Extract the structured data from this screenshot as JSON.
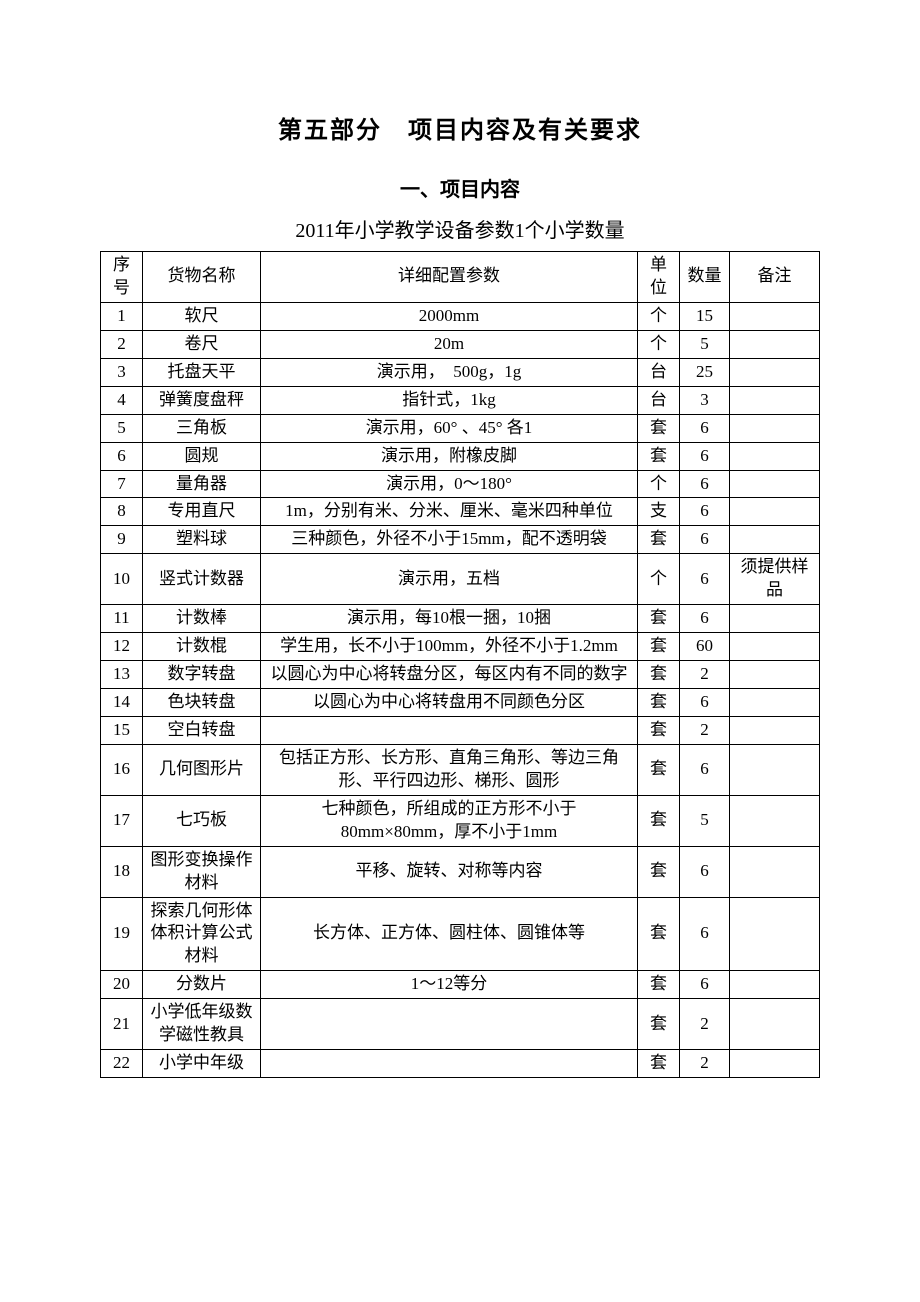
{
  "title": "第五部分　项目内容及有关要求",
  "subtitle": "一、项目内容",
  "subtitle2": "2011年小学教学设备参数1个小学数量",
  "headers": {
    "seq": "序号",
    "name": "货物名称",
    "spec": "详细配置参数",
    "unit": "单位",
    "qty": "数量",
    "note": "备注"
  },
  "rows": [
    {
      "seq": "1",
      "name": "软尺",
      "spec": "2000mm",
      "unit": "个",
      "qty": "15",
      "note": ""
    },
    {
      "seq": "2",
      "name": "卷尺",
      "spec": "20m",
      "unit": "个",
      "qty": "5",
      "note": ""
    },
    {
      "seq": "3",
      "name": "托盘天平",
      "spec": "演示用，　500g，1g",
      "unit": "台",
      "qty": "25",
      "note": ""
    },
    {
      "seq": "4",
      "name": "弹簧度盘秤",
      "spec": "指针式，1kg",
      "unit": "台",
      "qty": "3",
      "note": ""
    },
    {
      "seq": "5",
      "name": "三角板",
      "spec": "演示用，60° 、45° 各1",
      "unit": "套",
      "qty": "6",
      "note": ""
    },
    {
      "seq": "6",
      "name": "圆规",
      "spec": "演示用，附橡皮脚",
      "unit": "套",
      "qty": "6",
      "note": ""
    },
    {
      "seq": "7",
      "name": "量角器",
      "spec": "演示用，0～180°",
      "unit": "个",
      "qty": "6",
      "note": ""
    },
    {
      "seq": "8",
      "name": "专用直尺",
      "spec": "1m，分别有米、分米、厘米、毫米四种单位",
      "unit": "支",
      "qty": "6",
      "note": ""
    },
    {
      "seq": "9",
      "name": "塑料球",
      "spec": "三种颜色，外径不小于15mm，配不透明袋",
      "unit": "套",
      "qty": "6",
      "note": ""
    },
    {
      "seq": "10",
      "name": "竖式计数器",
      "spec": "演示用，五档",
      "unit": "个",
      "qty": "6",
      "note": "须提供样品"
    },
    {
      "seq": "11",
      "name": "计数棒",
      "spec": "演示用，每10根一捆，10捆",
      "unit": "套",
      "qty": "6",
      "note": ""
    },
    {
      "seq": "12",
      "name": "计数棍",
      "spec": "学生用，长不小于100mm，外径不小于1.2mm",
      "unit": "套",
      "qty": "60",
      "note": ""
    },
    {
      "seq": "13",
      "name": "数字转盘",
      "spec": "以圆心为中心将转盘分区，每区内有不同的数字",
      "unit": "套",
      "qty": "2",
      "note": ""
    },
    {
      "seq": "14",
      "name": "色块转盘",
      "spec": "以圆心为中心将转盘用不同颜色分区",
      "unit": "套",
      "qty": "6",
      "note": ""
    },
    {
      "seq": "15",
      "name": "空白转盘",
      "spec": "",
      "unit": "套",
      "qty": "2",
      "note": ""
    },
    {
      "seq": "16",
      "name": "几何图形片",
      "spec": "包括正方形、长方形、直角三角形、等边三角形、平行四边形、梯形、圆形",
      "unit": "套",
      "qty": "6",
      "note": ""
    },
    {
      "seq": "17",
      "name": "七巧板",
      "spec": "七种颜色，所组成的正方形不小于80mm×80mm，厚不小于1mm",
      "unit": "套",
      "qty": "5",
      "note": ""
    },
    {
      "seq": "18",
      "name": "图形变换操作材料",
      "spec": "平移、旋转、对称等内容",
      "unit": "套",
      "qty": "6",
      "note": ""
    },
    {
      "seq": "19",
      "name": "探索几何形体体积计算公式材料",
      "spec": "长方体、正方体、圆柱体、圆锥体等",
      "unit": "套",
      "qty": "6",
      "note": ""
    },
    {
      "seq": "20",
      "name": "分数片",
      "spec": "1～12等分",
      "unit": "套",
      "qty": "6",
      "note": ""
    },
    {
      "seq": "21",
      "name": "小学低年级数学磁性教具",
      "spec": "",
      "unit": "套",
      "qty": "2",
      "note": ""
    },
    {
      "seq": "22",
      "name": "小学中年级",
      "spec": "",
      "unit": "套",
      "qty": "2",
      "note": ""
    }
  ]
}
